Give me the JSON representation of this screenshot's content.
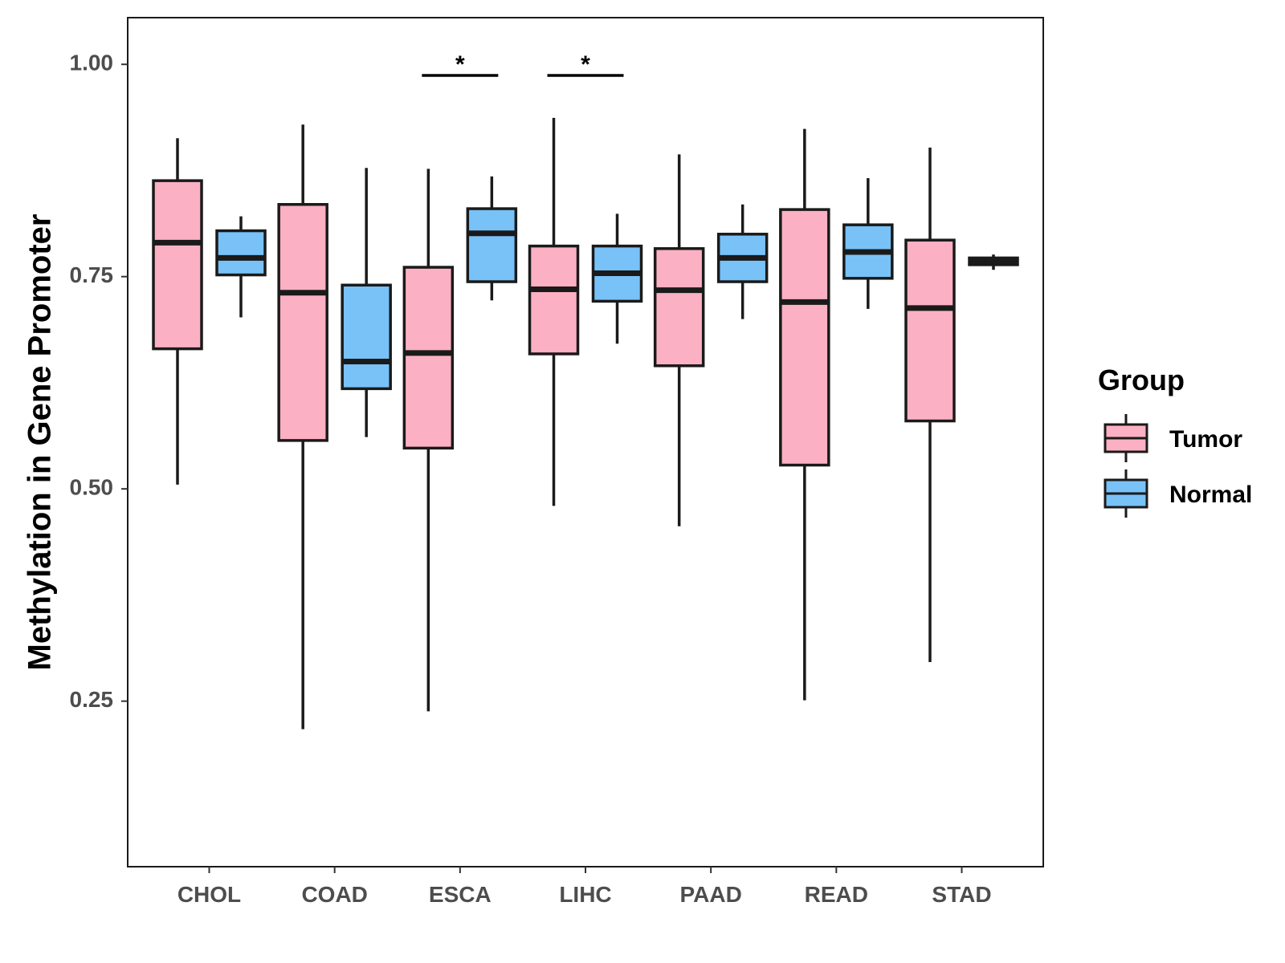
{
  "chart_data": {
    "type": "boxplot",
    "title": "",
    "xlabel": "",
    "ylabel": "Methylation in Gene Promoter",
    "ylim": [
      0.055,
      1.055
    ],
    "yticks": [
      0.25,
      0.5,
      0.75,
      1.0
    ],
    "ytick_labels": [
      "0.25",
      "0.50",
      "0.75",
      "1.00"
    ],
    "categories": [
      "CHOL",
      "COAD",
      "ESCA",
      "LIHC",
      "PAAD",
      "READ",
      "STAD"
    ],
    "legend": {
      "title": "Group",
      "position": "right",
      "entries": [
        {
          "name": "Tumor",
          "color": "#FBB0C3"
        },
        {
          "name": "Normal",
          "color": "#78C2F8"
        }
      ]
    },
    "series": [
      {
        "name": "Tumor",
        "color": "#FBB0C3",
        "boxes": [
          {
            "category": "CHOL",
            "whisker_low": 0.505,
            "q1": 0.665,
            "median": 0.79,
            "q3": 0.863,
            "whisker_high": 0.913
          },
          {
            "category": "COAD",
            "whisker_low": 0.217,
            "q1": 0.557,
            "median": 0.731,
            "q3": 0.835,
            "whisker_high": 0.929
          },
          {
            "category": "ESCA",
            "whisker_low": 0.238,
            "q1": 0.548,
            "median": 0.66,
            "q3": 0.761,
            "whisker_high": 0.877
          },
          {
            "category": "LIHC",
            "whisker_low": 0.48,
            "q1": 0.659,
            "median": 0.735,
            "q3": 0.786,
            "whisker_high": 0.937
          },
          {
            "category": "PAAD",
            "whisker_low": 0.456,
            "q1": 0.645,
            "median": 0.734,
            "q3": 0.783,
            "whisker_high": 0.894
          },
          {
            "category": "READ",
            "whisker_low": 0.251,
            "q1": 0.528,
            "median": 0.72,
            "q3": 0.829,
            "whisker_high": 0.924
          },
          {
            "category": "STAD",
            "whisker_low": 0.296,
            "q1": 0.58,
            "median": 0.713,
            "q3": 0.793,
            "whisker_high": 0.902
          }
        ]
      },
      {
        "name": "Normal",
        "color": "#78C2F8",
        "boxes": [
          {
            "category": "CHOL",
            "whisker_low": 0.702,
            "q1": 0.752,
            "median": 0.772,
            "q3": 0.804,
            "whisker_high": 0.821
          },
          {
            "category": "COAD",
            "whisker_low": 0.561,
            "q1": 0.618,
            "median": 0.65,
            "q3": 0.74,
            "whisker_high": 0.878
          },
          {
            "category": "ESCA",
            "whisker_low": 0.722,
            "q1": 0.744,
            "median": 0.801,
            "q3": 0.83,
            "whisker_high": 0.868
          },
          {
            "category": "LIHC",
            "whisker_low": 0.671,
            "q1": 0.721,
            "median": 0.754,
            "q3": 0.786,
            "whisker_high": 0.824
          },
          {
            "category": "PAAD",
            "whisker_low": 0.7,
            "q1": 0.744,
            "median": 0.772,
            "q3": 0.8,
            "whisker_high": 0.835
          },
          {
            "category": "READ",
            "whisker_low": 0.712,
            "q1": 0.748,
            "median": 0.779,
            "q3": 0.811,
            "whisker_high": 0.866
          },
          {
            "category": "STAD",
            "whisker_low": 0.758,
            "q1": 0.764,
            "median": 0.768,
            "q3": 0.772,
            "whisker_high": 0.776
          }
        ]
      }
    ],
    "annotations": [
      {
        "category": "ESCA",
        "label": "*",
        "y": 0.987
      },
      {
        "category": "LIHC",
        "label": "*",
        "y": 0.987
      }
    ]
  }
}
